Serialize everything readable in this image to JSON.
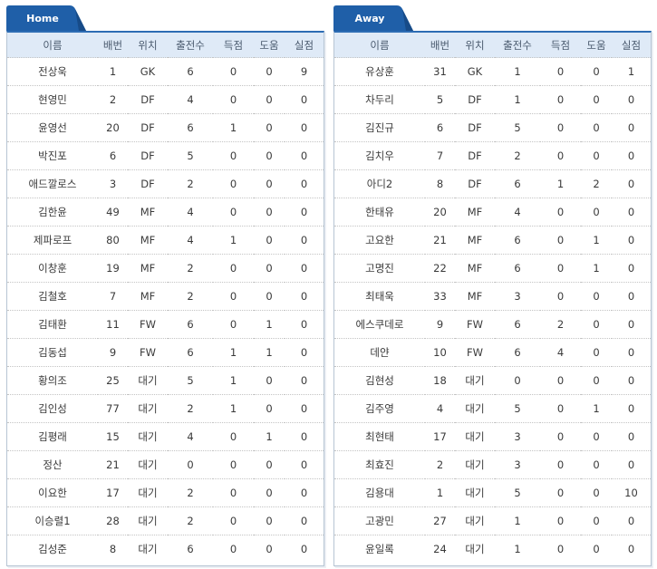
{
  "columns": [
    "이름",
    "배번",
    "위치",
    "출전수",
    "득점",
    "도움",
    "실점"
  ],
  "colors": {
    "tab": "#1f5fa8",
    "header_bg": "#dfeaf7",
    "border": "#b7c5d4"
  },
  "home": {
    "tab_label": "Home",
    "players": [
      [
        "전상욱",
        "1",
        "GK",
        "6",
        "0",
        "0",
        "9"
      ],
      [
        "현영민",
        "2",
        "DF",
        "4",
        "0",
        "0",
        "0"
      ],
      [
        "윤영선",
        "20",
        "DF",
        "6",
        "1",
        "0",
        "0"
      ],
      [
        "박진포",
        "6",
        "DF",
        "5",
        "0",
        "0",
        "0"
      ],
      [
        "애드깔로스",
        "3",
        "DF",
        "2",
        "0",
        "0",
        "0"
      ],
      [
        "김한윤",
        "49",
        "MF",
        "4",
        "0",
        "0",
        "0"
      ],
      [
        "제파로프",
        "80",
        "MF",
        "4",
        "1",
        "0",
        "0"
      ],
      [
        "이창훈",
        "19",
        "MF",
        "2",
        "0",
        "0",
        "0"
      ],
      [
        "김철호",
        "7",
        "MF",
        "2",
        "0",
        "0",
        "0"
      ],
      [
        "김태환",
        "11",
        "FW",
        "6",
        "0",
        "1",
        "0"
      ],
      [
        "김동섭",
        "9",
        "FW",
        "6",
        "1",
        "1",
        "0"
      ],
      [
        "황의조",
        "25",
        "대기",
        "5",
        "1",
        "0",
        "0"
      ],
      [
        "김인성",
        "77",
        "대기",
        "2",
        "1",
        "0",
        "0"
      ],
      [
        "김평래",
        "15",
        "대기",
        "4",
        "0",
        "1",
        "0"
      ],
      [
        "정산",
        "21",
        "대기",
        "0",
        "0",
        "0",
        "0"
      ],
      [
        "이요한",
        "17",
        "대기",
        "2",
        "0",
        "0",
        "0"
      ],
      [
        "이승렬1",
        "28",
        "대기",
        "2",
        "0",
        "0",
        "0"
      ],
      [
        "김성준",
        "8",
        "대기",
        "6",
        "0",
        "0",
        "0"
      ]
    ]
  },
  "away": {
    "tab_label": "Away",
    "players": [
      [
        "유상훈",
        "31",
        "GK",
        "1",
        "0",
        "0",
        "1"
      ],
      [
        "차두리",
        "5",
        "DF",
        "1",
        "0",
        "0",
        "0"
      ],
      [
        "김진규",
        "6",
        "DF",
        "5",
        "0",
        "0",
        "0"
      ],
      [
        "김치우",
        "7",
        "DF",
        "2",
        "0",
        "0",
        "0"
      ],
      [
        "아디2",
        "8",
        "DF",
        "6",
        "1",
        "2",
        "0"
      ],
      [
        "한태유",
        "20",
        "MF",
        "4",
        "0",
        "0",
        "0"
      ],
      [
        "고요한",
        "21",
        "MF",
        "6",
        "0",
        "1",
        "0"
      ],
      [
        "고명진",
        "22",
        "MF",
        "6",
        "0",
        "1",
        "0"
      ],
      [
        "최태욱",
        "33",
        "MF",
        "3",
        "0",
        "0",
        "0"
      ],
      [
        "에스쿠데로",
        "9",
        "FW",
        "6",
        "2",
        "0",
        "0"
      ],
      [
        "데얀",
        "10",
        "FW",
        "6",
        "4",
        "0",
        "0"
      ],
      [
        "김현성",
        "18",
        "대기",
        "0",
        "0",
        "0",
        "0"
      ],
      [
        "김주영",
        "4",
        "대기",
        "5",
        "0",
        "1",
        "0"
      ],
      [
        "최현태",
        "17",
        "대기",
        "3",
        "0",
        "0",
        "0"
      ],
      [
        "최효진",
        "2",
        "대기",
        "3",
        "0",
        "0",
        "0"
      ],
      [
        "김용대",
        "1",
        "대기",
        "5",
        "0",
        "0",
        "10"
      ],
      [
        "고광민",
        "27",
        "대기",
        "1",
        "0",
        "0",
        "0"
      ],
      [
        "윤일록",
        "24",
        "대기",
        "1",
        "0",
        "0",
        "0"
      ]
    ]
  }
}
